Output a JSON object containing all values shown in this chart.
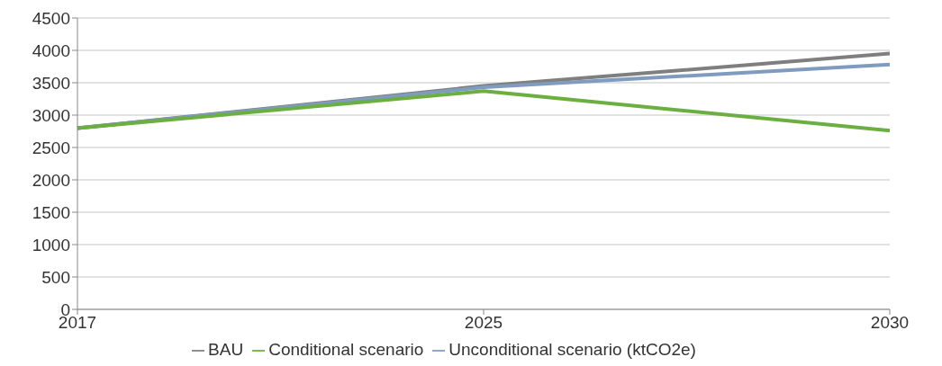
{
  "chart_data": {
    "type": "line",
    "categories": [
      "2017",
      "2025",
      "2030"
    ],
    "series": [
      {
        "name": "BAU",
        "color": "#7f7f7f",
        "values": [
          2800,
          3450,
          3950
        ]
      },
      {
        "name": "Unconditional scenario (ktCO2e)",
        "color": "#7f9bc0",
        "values": [
          2800,
          3430,
          3780
        ]
      },
      {
        "name": "Conditional scenario",
        "color": "#6aaf3f",
        "values": [
          2800,
          3370,
          2760
        ]
      }
    ],
    "ylim": [
      0,
      4500
    ],
    "yticks": [
      0,
      500,
      1000,
      1500,
      2000,
      2500,
      3000,
      3500,
      4000,
      4500
    ],
    "grid": "y",
    "legend": "bottom",
    "marker": "none",
    "line_style": "solid"
  }
}
